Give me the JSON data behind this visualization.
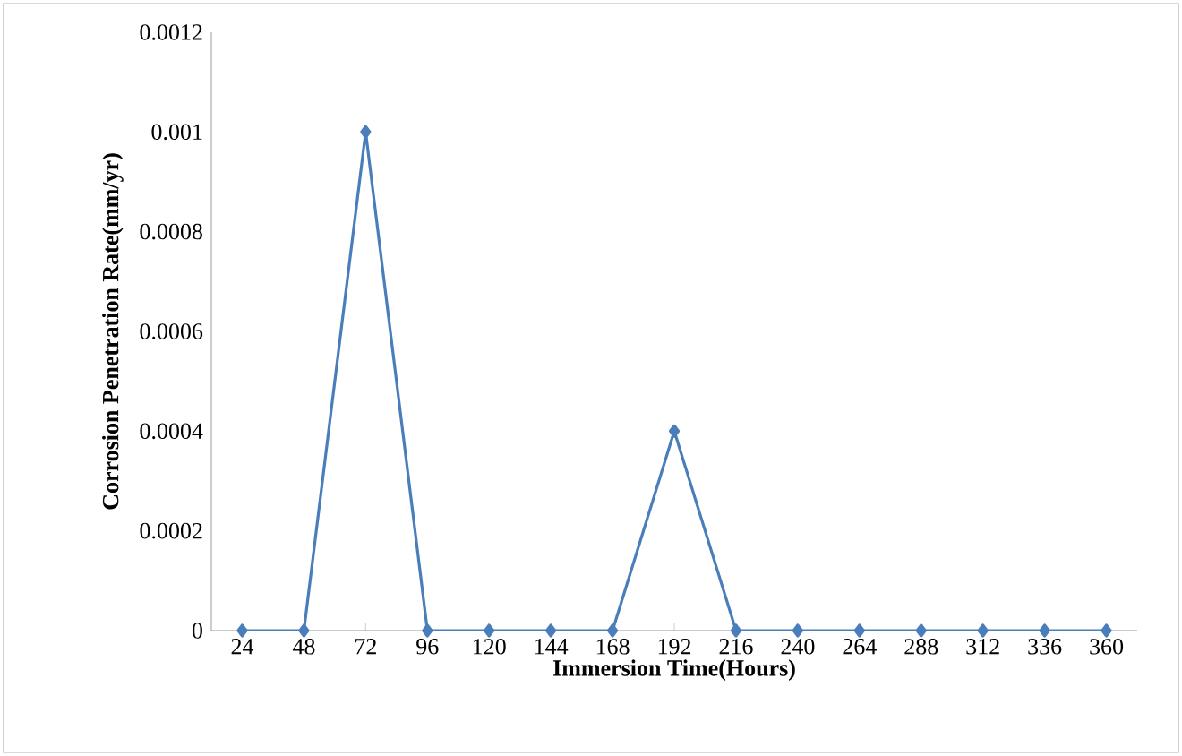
{
  "chart_data": {
    "type": "line",
    "xlabel": "Immersion Time(Hours)",
    "ylabel": "Corrosion Penetration Rate(mm/yr)",
    "categories": [
      "24",
      "48",
      "72",
      "96",
      "120",
      "144",
      "168",
      "192",
      "216",
      "240",
      "264",
      "288",
      "312",
      "336",
      "360"
    ],
    "series": [
      {
        "color": "#4a7ebb",
        "values": [
          0,
          0,
          0.001,
          0,
          0,
          0,
          0,
          0.0004,
          0,
          0,
          0,
          0,
          0,
          0,
          0
        ]
      }
    ],
    "ylim": [
      0,
      0.0012
    ],
    "yticks": [
      0,
      0.0002,
      0.0004,
      0.0006,
      0.0008,
      0.001,
      0.0012
    ],
    "marker": "diamond",
    "line_style": "solid"
  }
}
